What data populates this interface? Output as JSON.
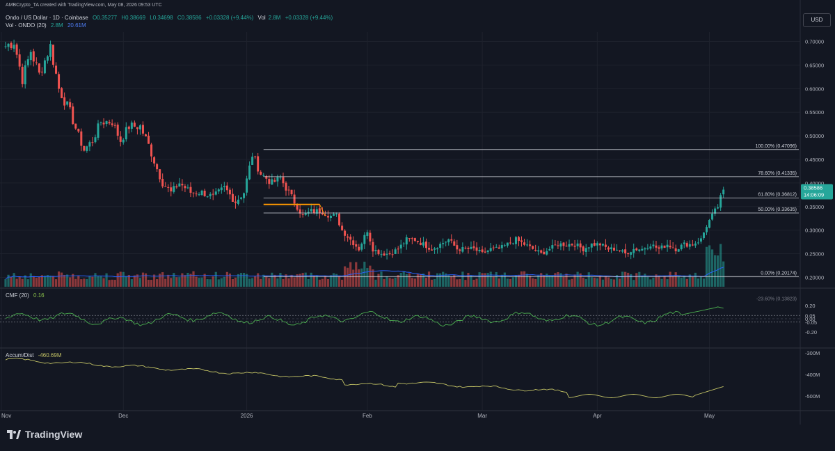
{
  "header": {
    "author_line": "AMBCrypto_TA created with TradingView.com, May 08, 2026 09:53 UTC",
    "symbol": "Ondo / US Dollar · 1D · Coinbase",
    "ohlc": {
      "o": "O0.35277",
      "h": "H0.38669",
      "l": "L0.34698",
      "c": "C0.38586",
      "chg": "+0.03328 (+9.44%)"
    },
    "vol_label": "Vol",
    "vol_value": "2.8M",
    "vol_chg": "+0.03328 (+9.44%)",
    "vol_ma_label": "Vol · ONDO (20)",
    "vol_ma_values": [
      "2.8M",
      "20.61M"
    ]
  },
  "currency_button": "USD",
  "price_badge": {
    "price": "0.38586",
    "countdown": "14:06:09"
  },
  "fib_labels": [
    {
      "level": "100.00% (0.47096)",
      "price": 0.47096
    },
    {
      "level": "78.60% (0.41335)",
      "price": 0.41335
    },
    {
      "level": "61.80% (0.36812)",
      "price": 0.36812
    },
    {
      "level": "50.00% (0.33635)",
      "price": 0.33635
    },
    {
      "level": "0.00% (0.20174)",
      "price": 0.20174
    }
  ],
  "fib_partial_label": "-23.60% (0.13823)",
  "indicators": {
    "cmf": {
      "label": "CMF (20)",
      "value": "0.16",
      "ticks": [
        "0.20",
        "0.05",
        "0.00",
        "-0.05",
        "-0.20"
      ]
    },
    "ad": {
      "label": "Accum/Dist",
      "value": "-460.69M",
      "ticks": [
        "-300M",
        "-400M",
        "-500M"
      ]
    }
  },
  "brand": "TradingView",
  "colors": {
    "up": "#26a69a",
    "down": "#ef5350",
    "bg": "#131722",
    "fib": "#d1d4dc",
    "orange": "#ff9800",
    "ma": "#2962ff",
    "cmf": "#4caf50",
    "ad": "#c3c365"
  },
  "chart_data": {
    "type": "candlestick",
    "title": "Ondo / US Dollar · 1D · Coinbase",
    "x_ticks": [
      "Nov",
      "Dec",
      "2026",
      "Feb",
      "Mar",
      "Apr",
      "May"
    ],
    "y_ticks": [
      0.7,
      0.65,
      0.6,
      0.55,
      0.5,
      0.45,
      0.4,
      0.35,
      0.3,
      0.25,
      0.2
    ],
    "ylim": [
      0.18,
      0.72
    ],
    "anchors": [
      [
        0,
        0.69
      ],
      [
        3,
        0.7
      ],
      [
        6,
        0.62
      ],
      [
        9,
        0.68
      ],
      [
        12,
        0.63
      ],
      [
        16,
        0.69
      ],
      [
        19,
        0.6
      ],
      [
        23,
        0.55
      ],
      [
        26,
        0.5
      ],
      [
        28,
        0.47
      ],
      [
        31,
        0.49
      ],
      [
        34,
        0.53
      ],
      [
        38,
        0.53
      ],
      [
        41,
        0.49
      ],
      [
        44,
        0.52
      ],
      [
        48,
        0.52
      ],
      [
        51,
        0.48
      ],
      [
        54,
        0.43
      ],
      [
        56,
        0.4
      ],
      [
        59,
        0.38
      ],
      [
        62,
        0.4
      ],
      [
        66,
        0.38
      ],
      [
        70,
        0.38
      ],
      [
        74,
        0.37
      ],
      [
        78,
        0.39
      ],
      [
        82,
        0.36
      ],
      [
        85,
        0.38
      ],
      [
        88,
        0.46
      ],
      [
        91,
        0.42
      ],
      [
        95,
        0.4
      ],
      [
        98,
        0.41
      ],
      [
        101,
        0.38
      ],
      [
        104,
        0.35
      ],
      [
        106,
        0.33
      ],
      [
        109,
        0.34
      ],
      [
        113,
        0.34
      ],
      [
        116,
        0.33
      ],
      [
        118,
        0.33
      ],
      [
        120,
        0.3
      ],
      [
        123,
        0.28
      ],
      [
        126,
        0.26
      ],
      [
        129,
        0.3
      ],
      [
        131,
        0.26
      ],
      [
        134,
        0.25
      ],
      [
        137,
        0.25
      ],
      [
        140,
        0.26
      ],
      [
        143,
        0.28
      ],
      [
        146,
        0.28
      ],
      [
        149,
        0.27
      ],
      [
        152,
        0.26
      ],
      [
        155,
        0.27
      ],
      [
        158,
        0.28
      ],
      [
        161,
        0.26
      ],
      [
        164,
        0.26
      ],
      [
        167,
        0.26
      ],
      [
        170,
        0.25
      ],
      [
        173,
        0.26
      ],
      [
        176,
        0.26
      ],
      [
        179,
        0.27
      ],
      [
        182,
        0.28
      ],
      [
        185,
        0.27
      ],
      [
        188,
        0.26
      ],
      [
        191,
        0.25
      ],
      [
        194,
        0.26
      ],
      [
        197,
        0.27
      ],
      [
        200,
        0.27
      ],
      [
        203,
        0.27
      ],
      [
        206,
        0.26
      ],
      [
        209,
        0.27
      ],
      [
        212,
        0.27
      ],
      [
        215,
        0.26
      ],
      [
        218,
        0.26
      ],
      [
        221,
        0.25
      ],
      [
        224,
        0.26
      ],
      [
        227,
        0.26
      ],
      [
        230,
        0.27
      ],
      [
        233,
        0.26
      ],
      [
        236,
        0.27
      ],
      [
        239,
        0.26
      ],
      [
        242,
        0.27
      ],
      [
        245,
        0.27
      ],
      [
        248,
        0.28
      ],
      [
        250,
        0.31
      ],
      [
        252,
        0.33
      ],
      [
        254,
        0.35
      ],
      [
        256,
        0.3859
      ]
    ],
    "last": {
      "open": 0.35277,
      "high": 0.38669,
      "low": 0.34698,
      "close": 0.38586
    },
    "volume_ma_period": 20
  }
}
